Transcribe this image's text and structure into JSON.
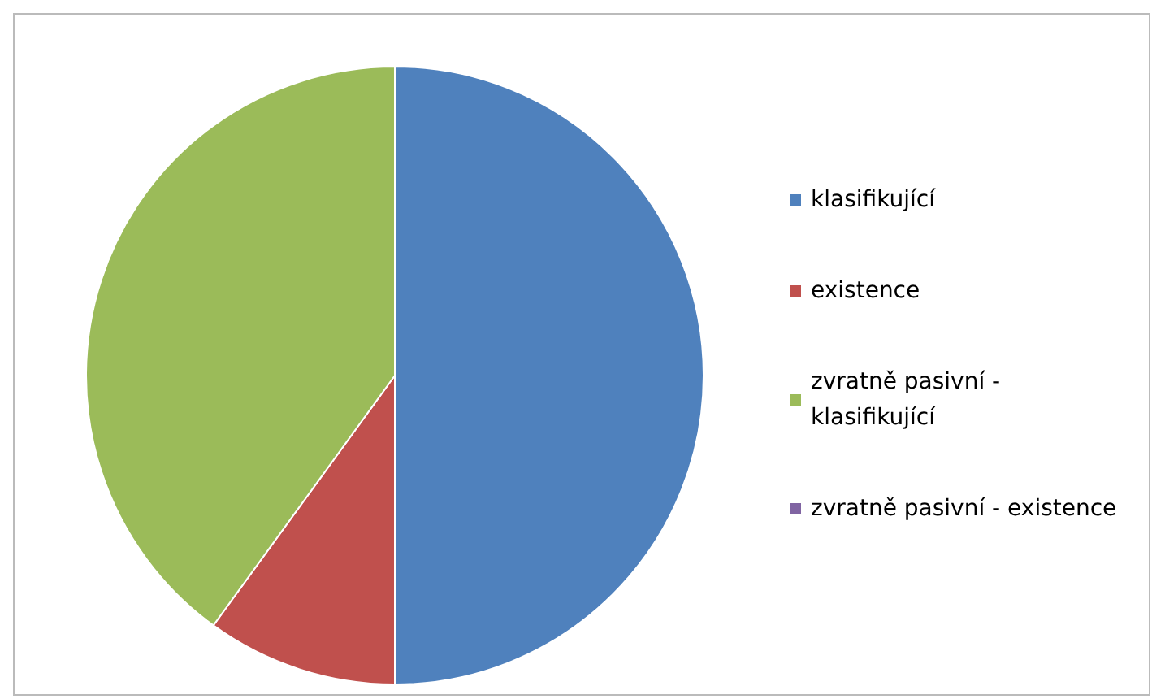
{
  "chart_data": {
    "type": "pie",
    "categories": [
      "klasifikující",
      "existence",
      "zvratně pasivní - klasifikující",
      "zvratně pasivní - existence"
    ],
    "values": [
      50,
      10,
      40,
      0
    ],
    "colors": [
      "#4f81bd",
      "#c0504d",
      "#9bbb59",
      "#8064a2"
    ],
    "legend": "right"
  }
}
